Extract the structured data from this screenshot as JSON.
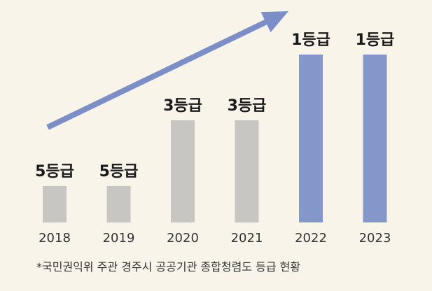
{
  "chart_data": {
    "type": "bar",
    "categories": [
      "2018",
      "2019",
      "2020",
      "2021",
      "2022",
      "2023"
    ],
    "values": [
      5,
      5,
      3,
      3,
      1,
      1
    ],
    "data_labels": [
      "5등급",
      "5등급",
      "3등급",
      "3등급",
      "1등급",
      "1등급"
    ],
    "bar_colors": [
      "#c8c6c2",
      "#c8c6c2",
      "#c8c6c2",
      "#c8c6c2",
      "#8497cb",
      "#8497cb"
    ],
    "arrow_color": "#7b8ec8",
    "grid": false,
    "legend": "none",
    "axis_note": "lower grade number = higher rank; axis not shown"
  },
  "footnote": "*국민권익위 주관 경주시 공공기관 종합청렴도 등급 현황"
}
